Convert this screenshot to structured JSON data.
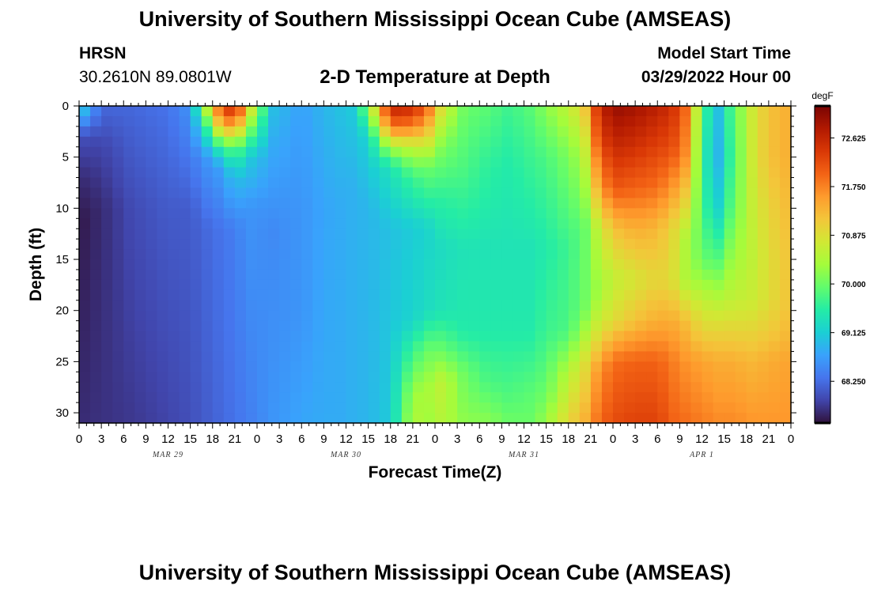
{
  "header": {
    "title": "University of Southern Mississippi Ocean Cube (AMSEAS)",
    "station": "HRSN",
    "coords": "30.2610N  89.0801W",
    "subtitle": "2-D Temperature at Depth",
    "model_start_label": "Model Start Time",
    "model_start_value": "03/29/2022 Hour 00"
  },
  "footer": {
    "title": "University of Southern Mississippi Ocean Cube (AMSEAS)"
  },
  "chart_data": {
    "type": "heatmap",
    "xlabel": "Forecast Time(Z)",
    "ylabel": "Depth (ft)",
    "xlim": [
      0,
      96
    ],
    "ylim": [
      31,
      0
    ],
    "x_ticks": [
      0,
      3,
      6,
      9,
      12,
      15,
      18,
      21,
      24,
      27,
      30,
      33,
      36,
      39,
      42,
      45,
      48,
      51,
      54,
      57,
      60,
      63,
      66,
      69,
      72,
      75,
      78,
      81,
      84,
      87,
      90,
      93,
      96
    ],
    "x_tick_labels": [
      "0",
      "3",
      "6",
      "9",
      "12",
      "15",
      "18",
      "21",
      "0",
      "3",
      "6",
      "9",
      "12",
      "15",
      "18",
      "21",
      "0",
      "3",
      "6",
      "9",
      "12",
      "15",
      "18",
      "21",
      "0",
      "3",
      "6",
      "9",
      "12",
      "15",
      "18",
      "21",
      "0"
    ],
    "y_ticks": [
      0,
      5,
      10,
      15,
      20,
      25,
      30
    ],
    "y_tick_labels": [
      "0",
      "5",
      "10",
      "15",
      "20",
      "25",
      "30"
    ],
    "date_labels": [
      {
        "text": "MAR 29",
        "x": 12
      },
      {
        "text": "MAR 30",
        "x": 36
      },
      {
        "text": "MAR 31",
        "x": 60
      },
      {
        "text": "APR 1",
        "x": 84
      }
    ],
    "colorbar": {
      "unit": "degF",
      "min": 67.5,
      "max": 73.2,
      "tick_values": [
        72.625,
        71.75,
        70.875,
        70.0,
        69.125,
        68.25
      ],
      "tick_labels": [
        "72.625",
        "71.750",
        "70.875",
        "70.000",
        "69.125",
        "68.250"
      ],
      "colors": [
        "#30123b",
        "#4145ab",
        "#4675ed",
        "#39a2fc",
        "#1bcfd4",
        "#24eca6",
        "#61fc6c",
        "#a4fc3b",
        "#d1e834",
        "#f3c63a",
        "#fe9b2d",
        "#f36315",
        "#d93806",
        "#b11901",
        "#7a0403"
      ]
    },
    "grid": {
      "x_step_hours": 1.5,
      "depths_ft": [
        0,
        1,
        2,
        3,
        4,
        5,
        6,
        7,
        8,
        9,
        10,
        11,
        12,
        13,
        14,
        15,
        16,
        17,
        18,
        19,
        20,
        21,
        22,
        23,
        24,
        25,
        26,
        27,
        28,
        29,
        30,
        31
      ]
    },
    "profiles": [
      {
        "t": 0,
        "v": [
          [
            0,
            69.3
          ],
          [
            1,
            68.9
          ],
          [
            3,
            68.0
          ],
          [
            7,
            67.7
          ],
          [
            11,
            67.55
          ],
          [
            31,
            67.7
          ]
        ]
      },
      {
        "t": 3,
        "v": [
          [
            0,
            68.2
          ],
          [
            4,
            67.9
          ],
          [
            10,
            67.7
          ],
          [
            31,
            67.75
          ]
        ]
      },
      {
        "t": 7,
        "v": [
          [
            0,
            68.2
          ],
          [
            10,
            67.95
          ],
          [
            31,
            67.8
          ]
        ]
      },
      {
        "t": 12,
        "v": [
          [
            0,
            68.3
          ],
          [
            10,
            68.1
          ],
          [
            31,
            67.9
          ]
        ]
      },
      {
        "t": 15,
        "v": [
          [
            0,
            68.6
          ],
          [
            10,
            68.1
          ],
          [
            31,
            68.0
          ]
        ]
      },
      {
        "t": 17,
        "v": [
          [
            0,
            70.5
          ],
          [
            2,
            69.5
          ],
          [
            5,
            68.6
          ],
          [
            12,
            68.2
          ],
          [
            31,
            68.1
          ]
        ]
      },
      {
        "t": 19,
        "v": [
          [
            0,
            72.1
          ],
          [
            2,
            71.2
          ],
          [
            4,
            69.6
          ],
          [
            6,
            68.7
          ],
          [
            12,
            68.3
          ],
          [
            31,
            68.2
          ]
        ]
      },
      {
        "t": 21,
        "v": [
          [
            0,
            72.8
          ],
          [
            2,
            71.6
          ],
          [
            4,
            70.0
          ],
          [
            7,
            69.0
          ],
          [
            12,
            68.4
          ],
          [
            31,
            68.3
          ]
        ]
      },
      {
        "t": 23,
        "v": [
          [
            0,
            71.0
          ],
          [
            2,
            70.2
          ],
          [
            5,
            69.1
          ],
          [
            10,
            68.6
          ],
          [
            31,
            68.4
          ]
        ]
      },
      {
        "t": 26,
        "v": [
          [
            0,
            69.0
          ],
          [
            4,
            68.8
          ],
          [
            12,
            68.5
          ],
          [
            31,
            68.6
          ]
        ]
      },
      {
        "t": 30,
        "v": [
          [
            0,
            68.7
          ],
          [
            10,
            68.6
          ],
          [
            20,
            68.6
          ],
          [
            31,
            68.75
          ]
        ]
      },
      {
        "t": 33,
        "v": [
          [
            0,
            68.9
          ],
          [
            10,
            68.75
          ],
          [
            31,
            68.8
          ]
        ]
      },
      {
        "t": 35,
        "v": [
          [
            0,
            69.0
          ],
          [
            10,
            68.8
          ],
          [
            31,
            68.8
          ]
        ]
      },
      {
        "t": 37,
        "v": [
          [
            0,
            69.1
          ],
          [
            8,
            68.85
          ],
          [
            31,
            68.85
          ]
        ]
      },
      {
        "t": 39,
        "v": [
          [
            0,
            70.2
          ],
          [
            3,
            69.2
          ],
          [
            10,
            68.9
          ],
          [
            31,
            68.9
          ]
        ]
      },
      {
        "t": 42,
        "v": [
          [
            0,
            72.7
          ],
          [
            2,
            71.9
          ],
          [
            4,
            70.4
          ],
          [
            6,
            69.4
          ],
          [
            12,
            69.0
          ],
          [
            31,
            69.1
          ]
        ]
      },
      {
        "t": 45,
        "v": [
          [
            0,
            72.6
          ],
          [
            2,
            71.8
          ],
          [
            4,
            70.6
          ],
          [
            7,
            69.7
          ],
          [
            12,
            69.1
          ],
          [
            21,
            69.2
          ],
          [
            24,
            69.7
          ],
          [
            28,
            70.3
          ],
          [
            31,
            70.5
          ]
        ]
      },
      {
        "t": 47,
        "v": [
          [
            0,
            72.0
          ],
          [
            3,
            71.0
          ],
          [
            6,
            70.0
          ],
          [
            12,
            69.2
          ],
          [
            20,
            69.3
          ],
          [
            24,
            70.0
          ],
          [
            28,
            70.4
          ],
          [
            31,
            70.3
          ]
        ]
      },
      {
        "t": 49,
        "v": [
          [
            0,
            70.8
          ],
          [
            4,
            70.1
          ],
          [
            9,
            69.6
          ],
          [
            14,
            69.3
          ],
          [
            20,
            69.4
          ],
          [
            24,
            70.0
          ],
          [
            27,
            70.6
          ],
          [
            31,
            70.5
          ]
        ]
      },
      {
        "t": 52,
        "v": [
          [
            0,
            70.0
          ],
          [
            6,
            69.8
          ],
          [
            14,
            69.4
          ],
          [
            22,
            69.5
          ],
          [
            26,
            70.0
          ],
          [
            31,
            70.2
          ]
        ]
      },
      {
        "t": 55,
        "v": [
          [
            0,
            69.9
          ],
          [
            6,
            69.6
          ],
          [
            14,
            69.4
          ],
          [
            22,
            69.5
          ],
          [
            27,
            69.8
          ],
          [
            31,
            70.2
          ]
        ]
      },
      {
        "t": 58,
        "v": [
          [
            0,
            69.7
          ],
          [
            6,
            69.5
          ],
          [
            14,
            69.4
          ],
          [
            22,
            69.5
          ],
          [
            28,
            69.8
          ],
          [
            31,
            70.0
          ]
        ]
      },
      {
        "t": 61,
        "v": [
          [
            0,
            69.9
          ],
          [
            5,
            69.7
          ],
          [
            14,
            69.4
          ],
          [
            22,
            69.5
          ],
          [
            28,
            69.9
          ],
          [
            31,
            70.0
          ]
        ]
      },
      {
        "t": 63,
        "v": [
          [
            0,
            70.2
          ],
          [
            5,
            69.8
          ],
          [
            14,
            69.5
          ],
          [
            22,
            69.7
          ],
          [
            28,
            70.0
          ],
          [
            31,
            70.3
          ]
        ]
      },
      {
        "t": 66,
        "v": [
          [
            0,
            70.6
          ],
          [
            5,
            70.1
          ],
          [
            14,
            69.7
          ],
          [
            22,
            69.8
          ],
          [
            26,
            70.5
          ],
          [
            31,
            71.0
          ]
        ]
      },
      {
        "t": 68,
        "v": [
          [
            0,
            71.0
          ],
          [
            4,
            70.5
          ],
          [
            12,
            69.9
          ],
          [
            20,
            70.0
          ],
          [
            25,
            70.8
          ],
          [
            31,
            71.3
          ]
        ]
      },
      {
        "t": 70,
        "v": [
          [
            0,
            72.5
          ],
          [
            3,
            72.2
          ],
          [
            8,
            71.4
          ],
          [
            12,
            70.6
          ],
          [
            18,
            70.3
          ],
          [
            22,
            70.8
          ],
          [
            26,
            71.6
          ],
          [
            31,
            71.9
          ]
        ]
      },
      {
        "t": 72,
        "v": [
          [
            0,
            73.0
          ],
          [
            3,
            72.7
          ],
          [
            8,
            72.1
          ],
          [
            12,
            71.2
          ],
          [
            17,
            70.6
          ],
          [
            21,
            70.9
          ],
          [
            25,
            71.9
          ],
          [
            31,
            72.2
          ]
        ]
      },
      {
        "t": 75,
        "v": [
          [
            0,
            72.9
          ],
          [
            3,
            72.6
          ],
          [
            8,
            72.0
          ],
          [
            12,
            71.4
          ],
          [
            17,
            70.8
          ],
          [
            21,
            71.2
          ],
          [
            25,
            72.0
          ],
          [
            31,
            72.3
          ]
        ]
      },
      {
        "t": 78,
        "v": [
          [
            0,
            72.7
          ],
          [
            3,
            72.4
          ],
          [
            8,
            71.9
          ],
          [
            12,
            71.3
          ],
          [
            17,
            71.0
          ],
          [
            21,
            71.4
          ],
          [
            25,
            72.0
          ],
          [
            31,
            72.3
          ]
        ]
      },
      {
        "t": 80,
        "v": [
          [
            0,
            72.5
          ],
          [
            4,
            72.2
          ],
          [
            8,
            71.6
          ],
          [
            12,
            71.0
          ],
          [
            17,
            70.9
          ],
          [
            21,
            71.4
          ],
          [
            25,
            71.8
          ],
          [
            31,
            72.0
          ]
        ]
      },
      {
        "t": 82,
        "v": [
          [
            0,
            71.9
          ],
          [
            5,
            71.6
          ],
          [
            9,
            71.0
          ],
          [
            13,
            70.4
          ],
          [
            17,
            70.4
          ],
          [
            21,
            71.2
          ],
          [
            25,
            71.6
          ],
          [
            31,
            71.9
          ]
        ]
      },
      {
        "t": 84,
        "v": [
          [
            0,
            69.9
          ],
          [
            5,
            69.7
          ],
          [
            10,
            69.8
          ],
          [
            15,
            70.0
          ],
          [
            19,
            70.6
          ],
          [
            22,
            71.0
          ],
          [
            25,
            71.5
          ],
          [
            31,
            71.8
          ]
        ]
      },
      {
        "t": 86,
        "v": [
          [
            0,
            68.9
          ],
          [
            5,
            68.8
          ],
          [
            10,
            69.1
          ],
          [
            15,
            69.8
          ],
          [
            19,
            70.5
          ],
          [
            22,
            71.0
          ],
          [
            25,
            71.4
          ],
          [
            31,
            71.7
          ]
        ]
      },
      {
        "t": 88,
        "v": [
          [
            0,
            69.8
          ],
          [
            5,
            69.7
          ],
          [
            10,
            69.9
          ],
          [
            15,
            70.3
          ],
          [
            19,
            70.6
          ],
          [
            22,
            71.0
          ],
          [
            25,
            71.4
          ],
          [
            31,
            71.7
          ]
        ]
      },
      {
        "t": 91,
        "v": [
          [
            0,
            70.8
          ],
          [
            5,
            70.8
          ],
          [
            10,
            70.7
          ],
          [
            15,
            70.6
          ],
          [
            19,
            70.7
          ],
          [
            22,
            71.0
          ],
          [
            25,
            71.3
          ],
          [
            31,
            71.6
          ]
        ]
      },
      {
        "t": 93,
        "v": [
          [
            0,
            71.2
          ],
          [
            5,
            71.2
          ],
          [
            10,
            71.0
          ],
          [
            15,
            70.9
          ],
          [
            19,
            70.9
          ],
          [
            22,
            71.1
          ],
          [
            25,
            71.4
          ],
          [
            31,
            71.6
          ]
        ]
      },
      {
        "t": 96,
        "v": [
          [
            0,
            71.4
          ],
          [
            5,
            71.4
          ],
          [
            10,
            71.3
          ],
          [
            15,
            71.2
          ],
          [
            19,
            71.2
          ],
          [
            22,
            71.3
          ],
          [
            25,
            71.5
          ],
          [
            31,
            71.6
          ]
        ]
      }
    ]
  }
}
